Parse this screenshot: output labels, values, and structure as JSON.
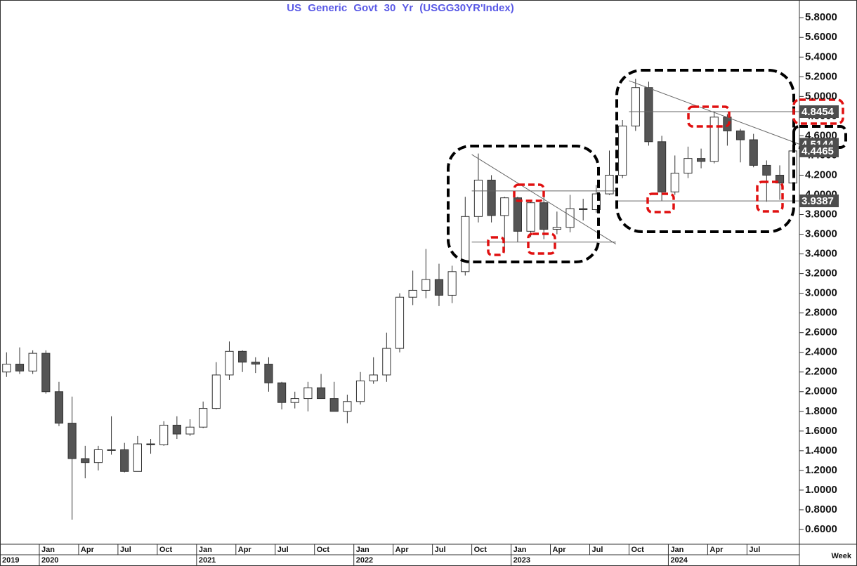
{
  "chart_data": {
    "type": "candlestick",
    "title": "US Generic Govt 30 Yr (USGG30YR'Index)",
    "x_label": "Week",
    "x": [
      "2019-10",
      "2019-11",
      "2019-12",
      "2020-01",
      "2020-02",
      "2020-03",
      "2020-04",
      "2020-05",
      "2020-06",
      "2020-07",
      "2020-08",
      "2020-09",
      "2020-10",
      "2020-11",
      "2020-12",
      "2021-01",
      "2021-02",
      "2021-03",
      "2021-04",
      "2021-05",
      "2021-06",
      "2021-07",
      "2021-08",
      "2021-09",
      "2021-10",
      "2021-11",
      "2021-12",
      "2022-01",
      "2022-02",
      "2022-03",
      "2022-04",
      "2022-05",
      "2022-06",
      "2022-07",
      "2022-08",
      "2022-09",
      "2022-10",
      "2022-11",
      "2022-12",
      "2023-01",
      "2023-02",
      "2023-03",
      "2023-04",
      "2023-05",
      "2023-06",
      "2023-07",
      "2023-08",
      "2023-09",
      "2023-10",
      "2023-11",
      "2023-12",
      "2024-01",
      "2024-02",
      "2024-03",
      "2024-04",
      "2024-05",
      "2024-06",
      "2024-07",
      "2024-08",
      "2024-09",
      "2024-10"
    ],
    "open": [
      2.2,
      2.28,
      2.21,
      2.39,
      2.0,
      1.68,
      1.32,
      1.28,
      1.41,
      1.41,
      1.19,
      1.47,
      1.46,
      1.66,
      1.57,
      1.64,
      1.83,
      2.17,
      2.41,
      2.3,
      2.28,
      2.09,
      1.89,
      1.93,
      2.04,
      1.93,
      1.8,
      1.9,
      2.11,
      2.17,
      2.44,
      2.96,
      3.03,
      3.14,
      2.98,
      3.22,
      3.78,
      4.15,
      3.79,
      3.97,
      3.63,
      3.92,
      3.65,
      3.67,
      3.86,
      3.85,
      4.01,
      4.2,
      4.7,
      5.09,
      4.54,
      4.03,
      4.22,
      4.37,
      4.34,
      4.79,
      4.65,
      4.56,
      4.3,
      4.2,
      4.12
    ],
    "high": [
      2.4,
      2.45,
      2.42,
      2.42,
      2.1,
      1.95,
      1.45,
      1.45,
      1.75,
      1.48,
      1.55,
      1.52,
      1.7,
      1.75,
      1.72,
      1.9,
      2.3,
      2.51,
      2.42,
      2.35,
      2.35,
      2.1,
      2.0,
      2.1,
      2.18,
      2.1,
      1.97,
      2.2,
      2.35,
      2.6,
      3.0,
      3.23,
      3.45,
      3.3,
      3.28,
      3.98,
      4.42,
      4.2,
      3.98,
      3.98,
      3.95,
      3.98,
      3.83,
      4.0,
      3.96,
      4.1,
      4.45,
      4.76,
      5.18,
      5.15,
      4.6,
      4.4,
      4.49,
      4.47,
      4.85,
      4.82,
      4.67,
      4.62,
      4.35,
      4.3,
      4.45
    ],
    "low": [
      2.15,
      2.18,
      2.18,
      1.98,
      1.65,
      0.7,
      1.12,
      1.2,
      1.36,
      1.18,
      1.19,
      1.37,
      1.45,
      1.52,
      1.55,
      1.63,
      1.82,
      2.12,
      2.2,
      2.19,
      2.0,
      1.82,
      1.83,
      1.8,
      1.93,
      1.8,
      1.68,
      1.87,
      2.08,
      2.1,
      2.4,
      2.88,
      2.95,
      2.87,
      2.9,
      3.18,
      3.72,
      3.72,
      3.42,
      3.52,
      3.57,
      3.55,
      3.6,
      3.62,
      3.74,
      3.82,
      4.0,
      4.17,
      4.65,
      4.5,
      3.94,
      4.0,
      4.17,
      4.27,
      4.32,
      4.5,
      4.33,
      4.28,
      3.93,
      3.95,
      4.1
    ],
    "close": [
      2.28,
      2.21,
      2.39,
      2.0,
      1.68,
      1.32,
      1.28,
      1.41,
      1.41,
      1.19,
      1.47,
      1.46,
      1.66,
      1.57,
      1.64,
      1.83,
      2.17,
      2.41,
      2.3,
      2.28,
      2.09,
      1.89,
      1.93,
      2.04,
      1.93,
      1.8,
      1.9,
      2.11,
      2.17,
      2.44,
      2.96,
      3.03,
      3.14,
      2.98,
      3.22,
      3.78,
      4.15,
      3.79,
      3.97,
      3.63,
      3.92,
      3.65,
      3.67,
      3.86,
      3.85,
      4.01,
      4.2,
      4.7,
      5.09,
      4.54,
      4.03,
      4.22,
      4.37,
      4.34,
      4.79,
      4.65,
      4.56,
      4.3,
      4.2,
      4.12,
      4.4465
    ],
    "up_color": "#ffffff",
    "down_color": "#555555",
    "outline_color": "#333333",
    "xlim": [
      "2019-10",
      "2024-11"
    ],
    "xticks": [
      {
        "value": "2020-01",
        "label": "Jan"
      },
      {
        "value": "2020-04",
        "label": "Apr"
      },
      {
        "value": "2020-07",
        "label": "Jul"
      },
      {
        "value": "2020-10",
        "label": "Oct"
      },
      {
        "value": "2021-01",
        "label": "Jan"
      },
      {
        "value": "2021-04",
        "label": "Apr"
      },
      {
        "value": "2021-07",
        "label": "Jul"
      },
      {
        "value": "2021-10",
        "label": "Oct"
      },
      {
        "value": "2022-01",
        "label": "Jan"
      },
      {
        "value": "2022-04",
        "label": "Apr"
      },
      {
        "value": "2022-07",
        "label": "Jul"
      },
      {
        "value": "2022-10",
        "label": "Oct"
      },
      {
        "value": "2023-01",
        "label": "Jan"
      },
      {
        "value": "2023-04",
        "label": "Apr"
      },
      {
        "value": "2023-07",
        "label": "Jul"
      },
      {
        "value": "2023-10",
        "label": "Oct"
      },
      {
        "value": "2024-01",
        "label": "Jan"
      },
      {
        "value": "2024-04",
        "label": "Apr"
      },
      {
        "value": "2024-07",
        "label": "Jul"
      }
    ],
    "year_ticks": [
      {
        "value": "2019-10",
        "label": "2019"
      },
      {
        "value": "2020-01",
        "label": "2020"
      },
      {
        "value": "2021-01",
        "label": "2021"
      },
      {
        "value": "2022-01",
        "label": "2022"
      },
      {
        "value": "2023-01",
        "label": "2023"
      },
      {
        "value": "2024-01",
        "label": "2024"
      }
    ],
    "ylim": [
      0.45,
      5.98
    ],
    "yticks": [
      {
        "value": 0.6,
        "label": "0.6000"
      },
      {
        "value": 0.8,
        "label": "0.8000"
      },
      {
        "value": 1.0,
        "label": "1.0000"
      },
      {
        "value": 1.2,
        "label": "1.2000"
      },
      {
        "value": 1.4,
        "label": "1.4000"
      },
      {
        "value": 1.6,
        "label": "1.6000"
      },
      {
        "value": 1.8,
        "label": "1.8000"
      },
      {
        "value": 2.0,
        "label": "2.0000"
      },
      {
        "value": 2.2,
        "label": "2.2000"
      },
      {
        "value": 2.4,
        "label": "2.4000"
      },
      {
        "value": 2.6,
        "label": "2.6000"
      },
      {
        "value": 2.8,
        "label": "2.8000"
      },
      {
        "value": 3.0,
        "label": "3.0000"
      },
      {
        "value": 3.2,
        "label": "3.2000"
      },
      {
        "value": 3.4,
        "label": "3.4000"
      },
      {
        "value": 3.6,
        "label": "3.6000"
      },
      {
        "value": 3.8,
        "label": "3.8000"
      },
      {
        "value": 4.0,
        "label": "4.0000"
      },
      {
        "value": 4.2,
        "label": "4.2000"
      },
      {
        "value": 4.4,
        "label": "4.4000"
      },
      {
        "value": 4.6,
        "label": "4.6000"
      },
      {
        "value": 4.8,
        "label": "4.8000"
      },
      {
        "value": 5.0,
        "label": "5.0000"
      },
      {
        "value": 5.2,
        "label": "5.2000"
      },
      {
        "value": 5.4,
        "label": "5.4000"
      },
      {
        "value": 5.6,
        "label": "5.6000"
      },
      {
        "value": 5.8,
        "label": "5.8000"
      }
    ],
    "grid": false,
    "lines": [
      {
        "x": [
          "2022-10",
          "2023-09"
        ],
        "y": [
          4.41,
          3.5
        ]
      },
      {
        "x": [
          "2022-10",
          "2023-09"
        ],
        "y": [
          4.04,
          4.04
        ]
      },
      {
        "x": [
          "2022-10",
          "2023-09"
        ],
        "y": [
          3.52,
          3.52
        ]
      },
      {
        "x": [
          "2023-10",
          "2024-11"
        ],
        "y": [
          5.16,
          4.5144
        ]
      },
      {
        "x": [
          "2023-10",
          "2024-11"
        ],
        "y": [
          4.8454,
          4.8454
        ]
      },
      {
        "x": [
          "2023-09",
          "2024-11"
        ],
        "y": [
          3.9387,
          3.9387
        ]
      }
    ],
    "price_labels": [
      4.8454,
      4.5144,
      4.4465,
      3.9387
    ]
  }
}
